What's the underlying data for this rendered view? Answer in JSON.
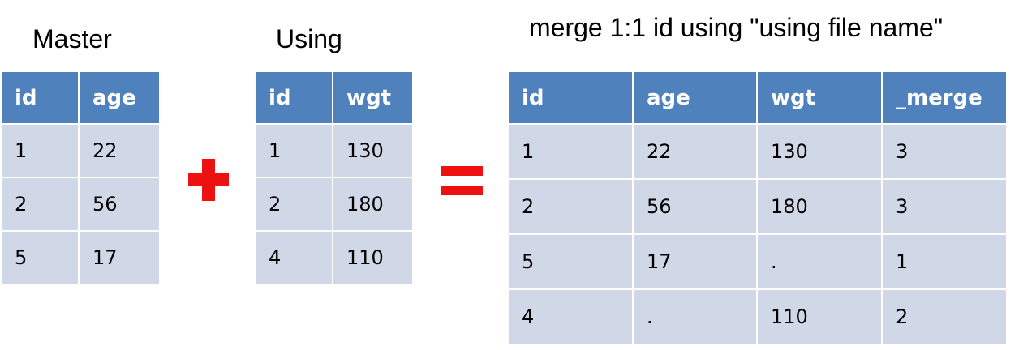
{
  "labels": {
    "master": "Master",
    "using": "Using",
    "command": "merge 1:1 id using \"using file name\""
  },
  "operators": {
    "plus": "+",
    "equals": "="
  },
  "colors": {
    "header": "#4f81bd",
    "cell": "#d0d8e8",
    "operator": "#ee1111"
  },
  "master": {
    "columns": [
      "id",
      "age"
    ],
    "rows": [
      [
        "1",
        "22"
      ],
      [
        "2",
        "56"
      ],
      [
        "5",
        "17"
      ]
    ]
  },
  "using": {
    "columns": [
      "id",
      "wgt"
    ],
    "rows": [
      [
        "1",
        "130"
      ],
      [
        "2",
        "180"
      ],
      [
        "4",
        "110"
      ]
    ]
  },
  "result": {
    "columns": [
      "id",
      "age",
      "wgt",
      "_merge"
    ],
    "rows": [
      [
        "1",
        "22",
        "130",
        "3"
      ],
      [
        "2",
        "56",
        "180",
        "3"
      ],
      [
        "5",
        "17",
        ".",
        "1"
      ],
      [
        "4",
        ".",
        "110",
        "2"
      ]
    ]
  }
}
